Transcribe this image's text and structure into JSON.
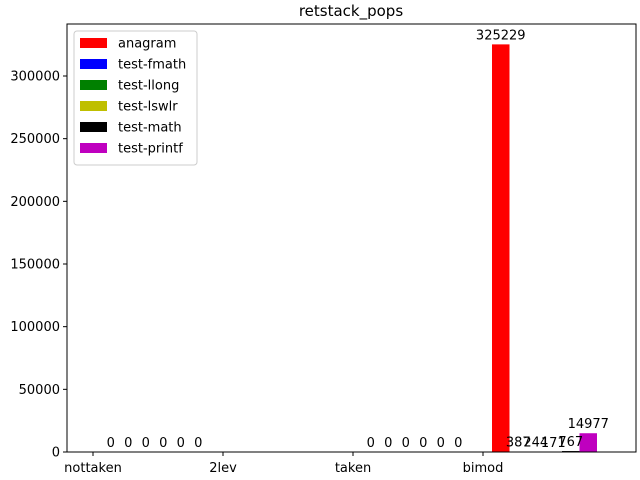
{
  "chart_data": {
    "type": "bar",
    "title": "retstack_pops",
    "xlabel": "",
    "ylabel": "",
    "categories": [
      "nottaken",
      "2lev",
      "taken",
      "bimod"
    ],
    "ylim": [
      0,
      341490
    ],
    "yticks": [
      0,
      50000,
      100000,
      150000,
      200000,
      250000,
      300000
    ],
    "grid": false,
    "legend_position": "top-left",
    "groups": [
      {
        "category": "nottaken",
        "bars": [
          {
            "series": "anagram",
            "value": 0,
            "label": "0"
          },
          {
            "series": "test-fmath",
            "value": 0,
            "label": "0"
          },
          {
            "series": "test-llong",
            "value": 0,
            "label": "0"
          },
          {
            "series": "test-lswlr",
            "value": 0,
            "label": "0"
          },
          {
            "series": "test-math",
            "value": 0,
            "label": "0"
          },
          {
            "series": "test-printf",
            "value": 0,
            "label": "0"
          }
        ]
      },
      {
        "category": "2lev",
        "bars": []
      },
      {
        "category": "taken",
        "bars": [
          {
            "series": "anagram",
            "value": 0,
            "label": "0"
          },
          {
            "series": "test-fmath",
            "value": 0,
            "label": "0"
          },
          {
            "series": "test-llong",
            "value": 0,
            "label": "0"
          },
          {
            "series": "test-lswlr",
            "value": 0,
            "label": "0"
          },
          {
            "series": "test-math",
            "value": 0,
            "label": "0"
          },
          {
            "series": "test-printf",
            "value": 0,
            "label": "0"
          }
        ]
      },
      {
        "category": "bimod",
        "bars": [
          {
            "series": "anagram",
            "value": 325229,
            "label": "325229"
          },
          {
            "series": "test-fmath",
            "value": 387,
            "label": "387"
          },
          {
            "series": "test-llong",
            "value": 244,
            "label": "244"
          },
          {
            "series": "test-lswlr",
            "value": 171,
            "label": "171"
          },
          {
            "series": "test-math",
            "value": 767,
            "label": "767"
          },
          {
            "series": "test-printf",
            "value": 14977,
            "label": "14977"
          }
        ]
      }
    ],
    "series": [
      {
        "name": "anagram",
        "color": "#ff0000"
      },
      {
        "name": "test-fmath",
        "color": "#0000ff"
      },
      {
        "name": "test-llong",
        "color": "#008000"
      },
      {
        "name": "test-lswlr",
        "color": "#bfbf00"
      },
      {
        "name": "test-math",
        "color": "#000000"
      },
      {
        "name": "test-printf",
        "color": "#bf00bf"
      }
    ]
  }
}
